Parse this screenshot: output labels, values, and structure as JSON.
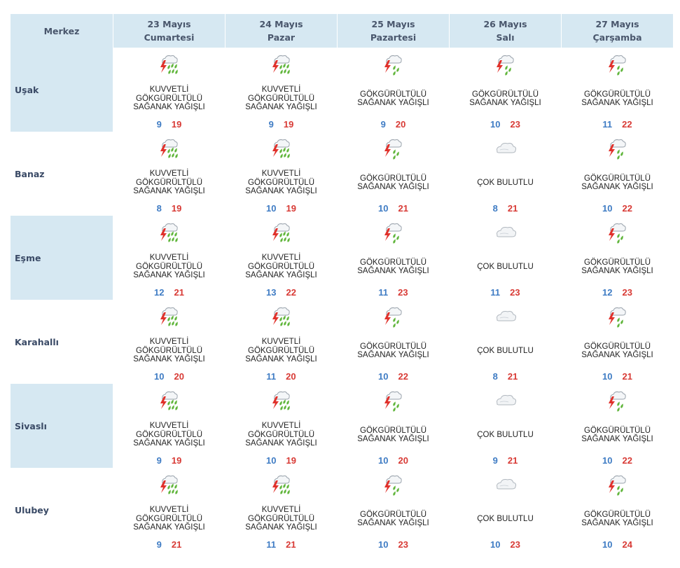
{
  "header": {
    "merkez_label": "Merkez",
    "days": [
      {
        "date": "23 Mayıs",
        "weekday": "Cumartesi"
      },
      {
        "date": "24 Mayıs",
        "weekday": "Pazar"
      },
      {
        "date": "25 Mayıs",
        "weekday": "Pazartesi"
      },
      {
        "date": "26 Mayıs",
        "weekday": "Salı"
      },
      {
        "date": "27 Mayıs",
        "weekday": "Çarşamba"
      }
    ]
  },
  "icons": {
    "heavy_thunder": "heavy-thunderstorm-showers-icon",
    "thunder": "thunderstorm-showers-icon",
    "cloudy": "mostly-cloudy-icon"
  },
  "colors": {
    "min_temp": "#3f7cc4",
    "max_temp": "#d83a35",
    "band": "#d6e8f2",
    "rain": "#5fb53a",
    "bolt": "#e0312b"
  },
  "rows": [
    {
      "city": "Uşak",
      "days": [
        {
          "icon": "heavy_thunder",
          "l1": "KUVVETLİ",
          "l2": "GÖKGÜRÜLTÜLÜ",
          "l3": "SAĞANAK YAĞIŞLI",
          "min": "9",
          "max": "19"
        },
        {
          "icon": "heavy_thunder",
          "l1": "KUVVETLİ",
          "l2": "GÖKGÜRÜLTÜLÜ",
          "l3": "SAĞANAK YAĞIŞLI",
          "min": "9",
          "max": "19"
        },
        {
          "icon": "thunder",
          "l1": "GÖKGÜRÜLTÜLÜ",
          "l2": "SAĞANAK YAĞIŞLI",
          "l3": "",
          "min": "9",
          "max": "20"
        },
        {
          "icon": "thunder",
          "l1": "GÖKGÜRÜLTÜLÜ",
          "l2": "SAĞANAK YAĞIŞLI",
          "l3": "",
          "min": "10",
          "max": "23"
        },
        {
          "icon": "thunder",
          "l1": "GÖKGÜRÜLTÜLÜ",
          "l2": "SAĞANAK YAĞIŞLI",
          "l3": "",
          "min": "11",
          "max": "22"
        }
      ]
    },
    {
      "city": "Banaz",
      "days": [
        {
          "icon": "heavy_thunder",
          "l1": "KUVVETLİ",
          "l2": "GÖKGÜRÜLTÜLÜ",
          "l3": "SAĞANAK YAĞIŞLI",
          "min": "8",
          "max": "19"
        },
        {
          "icon": "heavy_thunder",
          "l1": "KUVVETLİ",
          "l2": "GÖKGÜRÜLTÜLÜ",
          "l3": "SAĞANAK YAĞIŞLI",
          "min": "10",
          "max": "19"
        },
        {
          "icon": "thunder",
          "l1": "GÖKGÜRÜLTÜLÜ",
          "l2": "SAĞANAK YAĞIŞLI",
          "l3": "",
          "min": "10",
          "max": "21"
        },
        {
          "icon": "cloudy",
          "l1": "ÇOK BULUTLU",
          "l2": "",
          "l3": "",
          "min": "8",
          "max": "21"
        },
        {
          "icon": "thunder",
          "l1": "GÖKGÜRÜLTÜLÜ",
          "l2": "SAĞANAK YAĞIŞLI",
          "l3": "",
          "min": "10",
          "max": "22"
        }
      ]
    },
    {
      "city": "Eşme",
      "days": [
        {
          "icon": "heavy_thunder",
          "l1": "KUVVETLİ",
          "l2": "GÖKGÜRÜLTÜLÜ",
          "l3": "SAĞANAK YAĞIŞLI",
          "min": "12",
          "max": "21"
        },
        {
          "icon": "heavy_thunder",
          "l1": "KUVVETLİ",
          "l2": "GÖKGÜRÜLTÜLÜ",
          "l3": "SAĞANAK YAĞIŞLI",
          "min": "13",
          "max": "22"
        },
        {
          "icon": "thunder",
          "l1": "GÖKGÜRÜLTÜLÜ",
          "l2": "SAĞANAK YAĞIŞLI",
          "l3": "",
          "min": "11",
          "max": "23"
        },
        {
          "icon": "cloudy",
          "l1": "ÇOK BULUTLU",
          "l2": "",
          "l3": "",
          "min": "11",
          "max": "23"
        },
        {
          "icon": "thunder",
          "l1": "GÖKGÜRÜLTÜLÜ",
          "l2": "SAĞANAK YAĞIŞLI",
          "l3": "",
          "min": "12",
          "max": "23"
        }
      ]
    },
    {
      "city": "Karahallı",
      "days": [
        {
          "icon": "heavy_thunder",
          "l1": "KUVVETLİ",
          "l2": "GÖKGÜRÜLTÜLÜ",
          "l3": "SAĞANAK YAĞIŞLI",
          "min": "10",
          "max": "20"
        },
        {
          "icon": "heavy_thunder",
          "l1": "KUVVETLİ",
          "l2": "GÖKGÜRÜLTÜLÜ",
          "l3": "SAĞANAK YAĞIŞLI",
          "min": "11",
          "max": "20"
        },
        {
          "icon": "thunder",
          "l1": "GÖKGÜRÜLTÜLÜ",
          "l2": "SAĞANAK YAĞIŞLI",
          "l3": "",
          "min": "10",
          "max": "22"
        },
        {
          "icon": "cloudy",
          "l1": "ÇOK BULUTLU",
          "l2": "",
          "l3": "",
          "min": "8",
          "max": "21"
        },
        {
          "icon": "thunder",
          "l1": "GÖKGÜRÜLTÜLÜ",
          "l2": "SAĞANAK YAĞIŞLI",
          "l3": "",
          "min": "10",
          "max": "21"
        }
      ]
    },
    {
      "city": "Sivaslı",
      "days": [
        {
          "icon": "heavy_thunder",
          "l1": "KUVVETLİ",
          "l2": "GÖKGÜRÜLTÜLÜ",
          "l3": "SAĞANAK YAĞIŞLI",
          "min": "9",
          "max": "19"
        },
        {
          "icon": "heavy_thunder",
          "l1": "KUVVETLİ",
          "l2": "GÖKGÜRÜLTÜLÜ",
          "l3": "SAĞANAK YAĞIŞLI",
          "min": "10",
          "max": "19"
        },
        {
          "icon": "thunder",
          "l1": "GÖKGÜRÜLTÜLÜ",
          "l2": "SAĞANAK YAĞIŞLI",
          "l3": "",
          "min": "10",
          "max": "20"
        },
        {
          "icon": "cloudy",
          "l1": "ÇOK BULUTLU",
          "l2": "",
          "l3": "",
          "min": "9",
          "max": "21"
        },
        {
          "icon": "thunder",
          "l1": "GÖKGÜRÜLTÜLÜ",
          "l2": "SAĞANAK YAĞIŞLI",
          "l3": "",
          "min": "10",
          "max": "22"
        }
      ]
    },
    {
      "city": "Ulubey",
      "days": [
        {
          "icon": "heavy_thunder",
          "l1": "KUVVETLİ",
          "l2": "GÖKGÜRÜLTÜLÜ",
          "l3": "SAĞANAK YAĞIŞLI",
          "min": "9",
          "max": "21"
        },
        {
          "icon": "heavy_thunder",
          "l1": "KUVVETLİ",
          "l2": "GÖKGÜRÜLTÜLÜ",
          "l3": "SAĞANAK YAĞIŞLI",
          "min": "11",
          "max": "21"
        },
        {
          "icon": "thunder",
          "l1": "GÖKGÜRÜLTÜLÜ",
          "l2": "SAĞANAK YAĞIŞLI",
          "l3": "",
          "min": "10",
          "max": "23"
        },
        {
          "icon": "cloudy",
          "l1": "ÇOK BULUTLU",
          "l2": "",
          "l3": "",
          "min": "10",
          "max": "23"
        },
        {
          "icon": "thunder",
          "l1": "GÖKGÜRÜLTÜLÜ",
          "l2": "SAĞANAK YAĞIŞLI",
          "l3": "",
          "min": "10",
          "max": "24"
        }
      ]
    }
  ]
}
